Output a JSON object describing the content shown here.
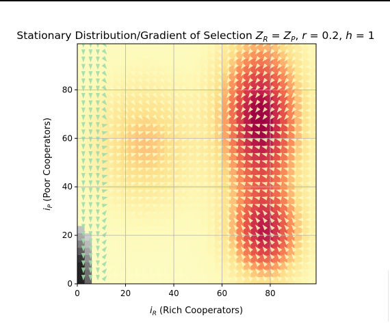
{
  "chart_data": {
    "type": "heatmap",
    "title": {
      "prefix": "Stationary Distribution/Gradient of Selection ",
      "z": "Z",
      "sub_r": "R",
      "eq": " = ",
      "sub_p": "P",
      "mid": ", ",
      "r_sym": "r",
      "r_val": " = 0.2, ",
      "h_sym": "h",
      "h_val": " = 1"
    },
    "xlabel": {
      "sym": "i",
      "sub": "R",
      "text": " (Rich Cooperators)"
    },
    "ylabel": {
      "sym": "i",
      "sub": "P",
      "text": " (Poor Cooperators)"
    },
    "xlim": [
      0,
      99
    ],
    "ylim": [
      0,
      99
    ],
    "xticks": [
      "0",
      "20",
      "40",
      "60",
      "80"
    ],
    "yticks": [
      "0",
      "20",
      "40",
      "60",
      "80"
    ],
    "grid": true,
    "colormap": "Spectral_r",
    "density_model": {
      "description_of_peaks": [
        {
          "i_R": 76,
          "i_P": 68,
          "level": 0.95,
          "spread_R": 16,
          "spread_P": 32
        },
        {
          "i_R": 78,
          "i_P": 20,
          "level": 0.75,
          "spread_R": 14,
          "spread_P": 18
        },
        {
          "i_R": 28,
          "i_P": 58,
          "level": 0.35,
          "spread_R": 20,
          "spread_P": 25
        },
        {
          "i_R": 2,
          "i_P": 5,
          "level": 0.0,
          "spread_R": 4,
          "spread_P": 15
        }
      ]
    },
    "quiver_color_scale": "green-to-yellow"
  }
}
